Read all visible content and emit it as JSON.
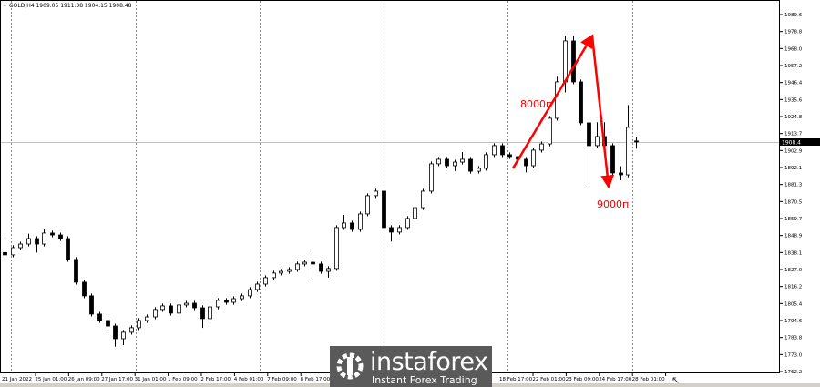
{
  "header": {
    "symbol_info": "GOLD,H4  1909.05 1911.38 1904.15 1908.48"
  },
  "watermark": {
    "name": "instaforex",
    "tagline": "Instant Forex Trading"
  },
  "chart_data": {
    "type": "candlestick",
    "title": "GOLD,H4",
    "ohlc_last": {
      "open": 1909.05,
      "high": 1911.38,
      "low": 1904.15,
      "close": 1908.48
    },
    "current_price_label": "1908.4",
    "y_ticks": [
      "1989.6",
      "1978.8",
      "1968.0",
      "1957.2",
      "1946.4",
      "1935.6",
      "1924.8",
      "1913.7",
      "1902.9",
      "1892.1",
      "1881.3",
      "1870.5",
      "1859.7",
      "1848.9",
      "1838.1",
      "1827.0",
      "1816.2",
      "1805.4",
      "1794.6",
      "1783.8",
      "1773.0",
      "1762.2"
    ],
    "ylim": [
      1762.2,
      1989.6
    ],
    "x_ticks": [
      "21 Jan 2022",
      "25 Jan 01:00",
      "26 Jan 09:00",
      "27 Jan 17:00",
      "31 Jan 01:00",
      "1 Feb 09:00",
      "2 Feb 17:00",
      "4 Feb 01:00",
      "7 Feb 09:00",
      "8 Feb 17:00",
      "18 Feb 17:00",
      "22 Feb 01:00",
      "23 Feb 09:00",
      "24 Feb 17:00",
      "28 Feb 01:00"
    ],
    "grid": "vertical dotted",
    "colors": {
      "bull": "#ffffff",
      "bear": "#000000",
      "annotation": "#ff0000",
      "price_line": "#c0c0c0"
    },
    "annotations": [
      {
        "label": "8000п",
        "from_price": 1891.6,
        "to_price": 1976.0,
        "direction": "up"
      },
      {
        "label": "9000п",
        "from_price": 1976.0,
        "to_price": 1880.0,
        "direction": "down"
      }
    ],
    "candles": [
      [
        1838.0,
        1846.0,
        1832.0,
        1836.5
      ],
      [
        1836.5,
        1842.6,
        1835.0,
        1841.1
      ],
      [
        1841.1,
        1844.9,
        1839.6,
        1843.4
      ],
      [
        1843.4,
        1850.0,
        1841.9,
        1846.9
      ],
      [
        1846.9,
        1848.4,
        1838.0,
        1843.4
      ],
      [
        1843.4,
        1853.0,
        1841.9,
        1850.4
      ],
      [
        1850.4,
        1852.0,
        1847.7,
        1849.2
      ],
      [
        1849.2,
        1850.7,
        1845.4,
        1846.9
      ],
      [
        1846.9,
        1848.4,
        1832.1,
        1833.6
      ],
      [
        1833.6,
        1835.1,
        1817.6,
        1819.1
      ],
      [
        1819.1,
        1820.6,
        1808.9,
        1810.4
      ],
      [
        1810.4,
        1811.9,
        1797.3,
        1798.8
      ],
      [
        1798.8,
        1800.3,
        1793.2,
        1794.7
      ],
      [
        1794.7,
        1796.2,
        1789.7,
        1791.2
      ],
      [
        1791.2,
        1792.7,
        1778.0,
        1783.1
      ],
      [
        1783.1,
        1788.7,
        1779.0,
        1787.2
      ],
      [
        1787.2,
        1791.6,
        1785.7,
        1790.1
      ],
      [
        1790.1,
        1796.2,
        1788.6,
        1794.7
      ],
      [
        1794.7,
        1798.5,
        1793.2,
        1797.0
      ],
      [
        1797.0,
        1803.2,
        1795.5,
        1801.7
      ],
      [
        1801.7,
        1805.5,
        1800.2,
        1804.0
      ],
      [
        1804.0,
        1805.5,
        1797.9,
        1799.4
      ],
      [
        1799.4,
        1806.1,
        1797.9,
        1804.6
      ],
      [
        1804.6,
        1807.2,
        1803.1,
        1805.7
      ],
      [
        1805.7,
        1807.2,
        1801.3,
        1802.8
      ],
      [
        1802.8,
        1804.3,
        1790.0,
        1795.9
      ],
      [
        1795.9,
        1804.9,
        1794.4,
        1803.4
      ],
      [
        1803.4,
        1809.0,
        1801.9,
        1807.5
      ],
      [
        1807.5,
        1809.0,
        1804.8,
        1806.3
      ],
      [
        1806.3,
        1810.1,
        1804.8,
        1808.6
      ],
      [
        1808.6,
        1811.9,
        1807.1,
        1810.4
      ],
      [
        1810.4,
        1815.9,
        1808.9,
        1814.4
      ],
      [
        1814.4,
        1819.4,
        1812.9,
        1817.9
      ],
      [
        1817.9,
        1823.5,
        1816.4,
        1822.0
      ],
      [
        1822.0,
        1826.4,
        1820.5,
        1824.9
      ],
      [
        1824.9,
        1827.5,
        1823.4,
        1826.0
      ],
      [
        1826.0,
        1828.7,
        1824.5,
        1827.2
      ],
      [
        1827.2,
        1832.2,
        1825.7,
        1830.7
      ],
      [
        1830.7,
        1833.3,
        1829.2,
        1831.8
      ],
      [
        1831.8,
        1837.0,
        1822.0,
        1830.7
      ],
      [
        1830.7,
        1832.2,
        1824.5,
        1826.0
      ],
      [
        1826.0,
        1829.3,
        1822.0,
        1827.8
      ],
      [
        1827.8,
        1855.4,
        1826.3,
        1853.9
      ],
      [
        1853.9,
        1862.0,
        1852.4,
        1856.8
      ],
      [
        1856.8,
        1858.3,
        1851.2,
        1852.7
      ],
      [
        1852.7,
        1864.1,
        1851.2,
        1862.6
      ],
      [
        1862.6,
        1875.7,
        1861.1,
        1874.2
      ],
      [
        1874.2,
        1878.6,
        1872.7,
        1877.1
      ],
      [
        1877.1,
        1878.6,
        1852.4,
        1853.9
      ],
      [
        1853.9,
        1855.4,
        1845.0,
        1851.0
      ],
      [
        1851.0,
        1855.4,
        1849.5,
        1853.9
      ],
      [
        1853.9,
        1861.2,
        1852.4,
        1859.7
      ],
      [
        1859.7,
        1868.1,
        1858.2,
        1866.6
      ],
      [
        1866.6,
        1878.6,
        1865.1,
        1877.1
      ],
      [
        1877.1,
        1896.0,
        1875.6,
        1894.5
      ],
      [
        1894.5,
        1898.9,
        1893.0,
        1897.4
      ],
      [
        1897.4,
        1898.9,
        1891.8,
        1893.3
      ],
      [
        1893.3,
        1897.1,
        1890.0,
        1895.6
      ],
      [
        1895.6,
        1902.0,
        1894.1,
        1897.4
      ],
      [
        1897.4,
        1898.9,
        1888.3,
        1889.8
      ],
      [
        1889.8,
        1893.1,
        1888.3,
        1891.6
      ],
      [
        1891.6,
        1901.8,
        1890.1,
        1900.3
      ],
      [
        1900.3,
        1907.6,
        1898.8,
        1906.1
      ],
      [
        1906.1,
        1907.6,
        1898.8,
        1900.3
      ],
      [
        1900.3,
        1901.8,
        1897.6,
        1899.1
      ],
      [
        1899.1,
        1900.6,
        1895.9,
        1897.4
      ],
      [
        1897.4,
        1898.9,
        1889.0,
        1893.3
      ],
      [
        1893.3,
        1904.7,
        1891.8,
        1903.2
      ],
      [
        1903.2,
        1908.7,
        1901.7,
        1907.2
      ],
      [
        1907.2,
        1925.0,
        1905.7,
        1923.5
      ],
      [
        1923.5,
        1950.0,
        1922.0,
        1946.7
      ],
      [
        1946.7,
        1976.0,
        1940.0,
        1972.8
      ],
      [
        1972.8,
        1976.0,
        1945.2,
        1946.7
      ],
      [
        1946.7,
        1948.2,
        1919.1,
        1920.6
      ],
      [
        1920.6,
        1922.1,
        1880.0,
        1906.1
      ],
      [
        1906.1,
        1921.0,
        1904.6,
        1911.9
      ],
      [
        1911.9,
        1921.0,
        1904.6,
        1906.1
      ],
      [
        1906.1,
        1907.6,
        1887.2,
        1888.7
      ],
      [
        1888.7,
        1893.0,
        1884.0,
        1887.5
      ],
      [
        1887.5,
        1932.0,
        1886.0,
        1917.7
      ],
      [
        1909.05,
        1911.38,
        1904.15,
        1908.48
      ]
    ]
  }
}
